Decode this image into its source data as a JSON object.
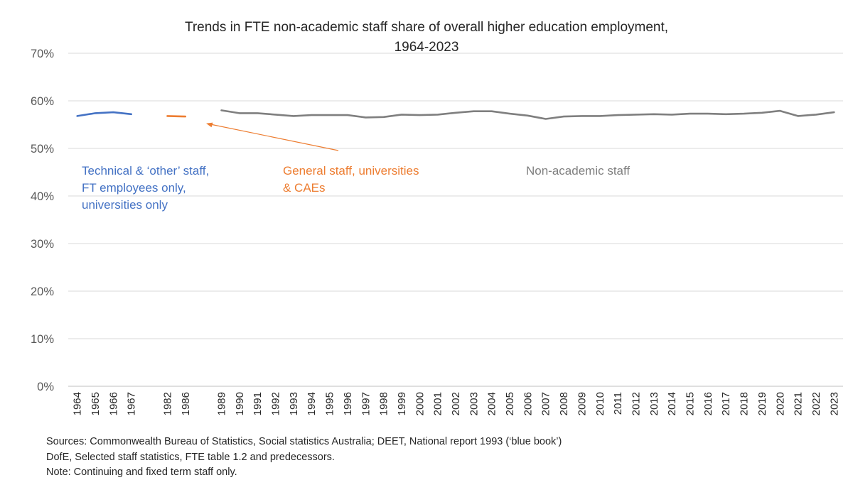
{
  "chart_data": {
    "type": "line",
    "title_line1": "Trends in FTE non-academic staff share of overall higher education employment,",
    "title_line2": "1964-2023",
    "xlabel": "",
    "ylabel": "",
    "ylim": [
      0,
      70
    ],
    "yticks": [
      "0%",
      "10%",
      "20%",
      "30%",
      "40%",
      "50%",
      "60%",
      "70%"
    ],
    "categories": [
      "1964",
      "1965",
      "1966",
      "1967",
      "",
      "1982",
      "1986",
      "",
      "1989",
      "1990",
      "1991",
      "1992",
      "1993",
      "1994",
      "1995",
      "1996",
      "1997",
      "1998",
      "1999",
      "2000",
      "2001",
      "2002",
      "2003",
      "2004",
      "2005",
      "2006",
      "2007",
      "2008",
      "2009",
      "2010",
      "2011",
      "2012",
      "2013",
      "2014",
      "2015",
      "2016",
      "2017",
      "2018",
      "2019",
      "2020",
      "2021",
      "2022",
      "2023"
    ],
    "series": [
      {
        "name": "Technical & 'other' staff, FT employees only, universities only",
        "label_lines": [
          "Technical & ‘other’ staff,",
          "FT employees only,",
          "universities only"
        ],
        "color": "#4472C4",
        "values": [
          56.8,
          57.4,
          57.6,
          57.2,
          null,
          null,
          null,
          null,
          null,
          null,
          null,
          null,
          null,
          null,
          null,
          null,
          null,
          null,
          null,
          null,
          null,
          null,
          null,
          null,
          null,
          null,
          null,
          null,
          null,
          null,
          null,
          null,
          null,
          null,
          null,
          null,
          null,
          null,
          null,
          null,
          null,
          null,
          null
        ]
      },
      {
        "name": "General staff, universities & CAEs",
        "label_lines": [
          "General staff, universities",
          "& CAEs"
        ],
        "color": "#ED7D31",
        "values": [
          null,
          null,
          null,
          null,
          null,
          56.8,
          56.7,
          null,
          null,
          null,
          null,
          null,
          null,
          null,
          null,
          null,
          null,
          null,
          null,
          null,
          null,
          null,
          null,
          null,
          null,
          null,
          null,
          null,
          null,
          null,
          null,
          null,
          null,
          null,
          null,
          null,
          null,
          null,
          null,
          null,
          null,
          null,
          null
        ]
      },
      {
        "name": "Non-academic staff",
        "label_lines": [
          "Non-academic staff"
        ],
        "color": "#7F7F7F",
        "values": [
          null,
          null,
          null,
          null,
          null,
          null,
          null,
          null,
          58.0,
          57.4,
          57.4,
          57.1,
          56.8,
          57.0,
          57.0,
          57.0,
          56.5,
          56.6,
          57.1,
          57.0,
          57.1,
          57.5,
          57.8,
          57.8,
          57.3,
          56.9,
          56.2,
          56.7,
          56.8,
          56.8,
          57.0,
          57.1,
          57.2,
          57.1,
          57.3,
          57.3,
          57.2,
          57.3,
          57.5,
          57.9,
          56.8,
          57.1,
          57.6
        ]
      }
    ],
    "annotation": "arrow pointing from the general staff label to the general staff series"
  },
  "notes": {
    "line1": "Sources: Commonwealth Bureau of Statistics, Social statistics Australia; DEET, National report 1993 (‘blue book’)",
    "line2": "DofE, Selected staff statistics, FTE table 1.2 and predecessors.",
    "line3": "Note: Continuing and fixed term staff only."
  }
}
